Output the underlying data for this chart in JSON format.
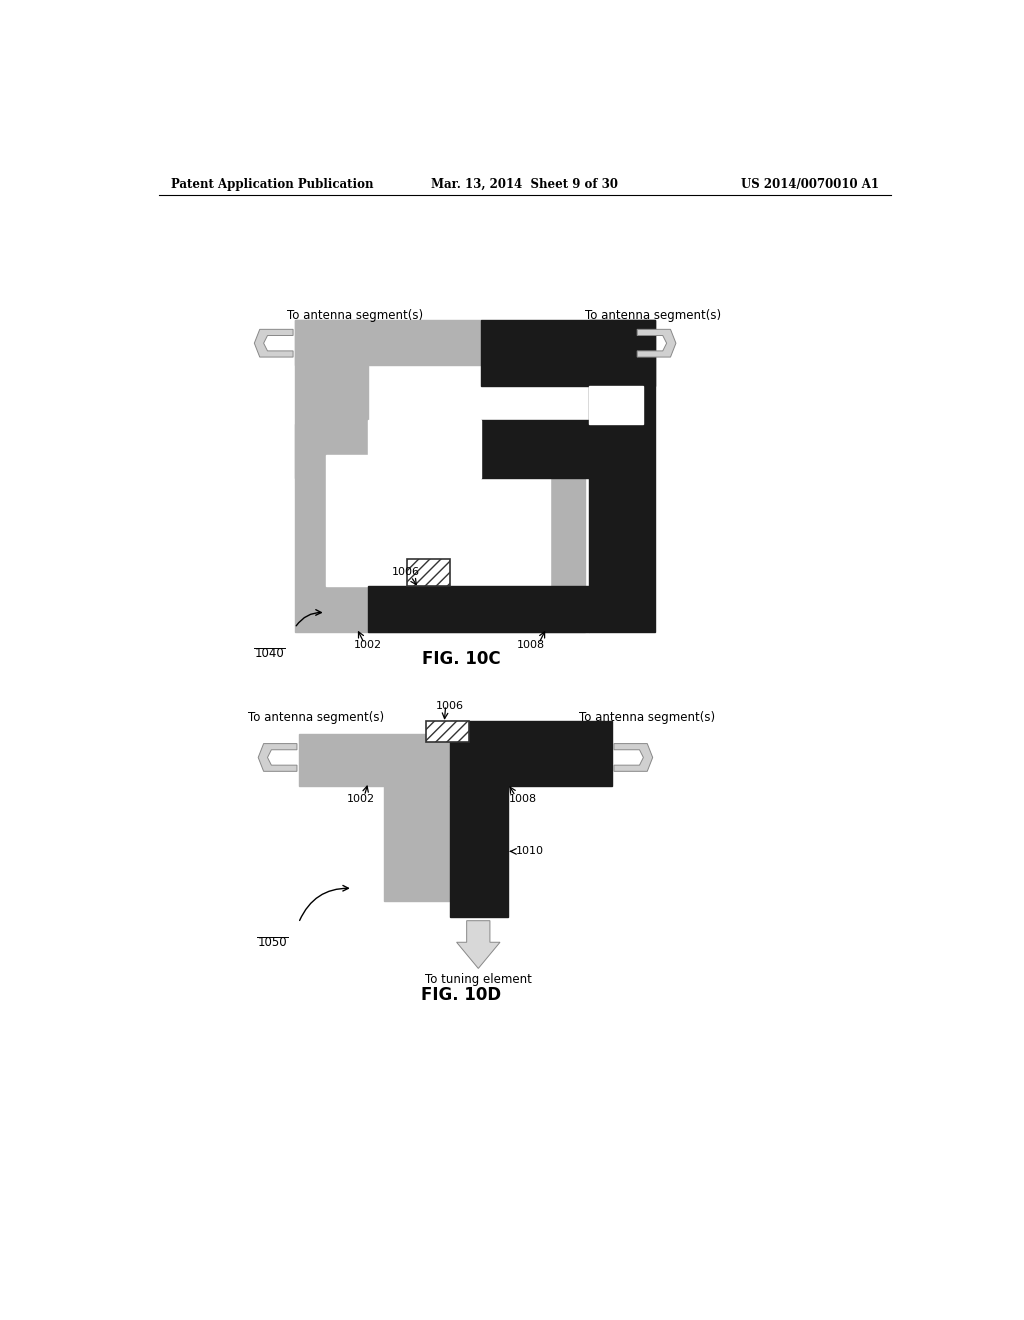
{
  "bg_color": "#ffffff",
  "header_left": "Patent Application Publication",
  "header_center": "Mar. 13, 2014  Sheet 9 of 30",
  "header_right": "US 2014/0070010 A1",
  "fig10c_label": "FIG. 10C",
  "fig10d_label": "FIG. 10D",
  "med_gray": "#b0b0b0",
  "light_gray": "#c8c8c8",
  "black": "#111111",
  "white": "#ffffff"
}
